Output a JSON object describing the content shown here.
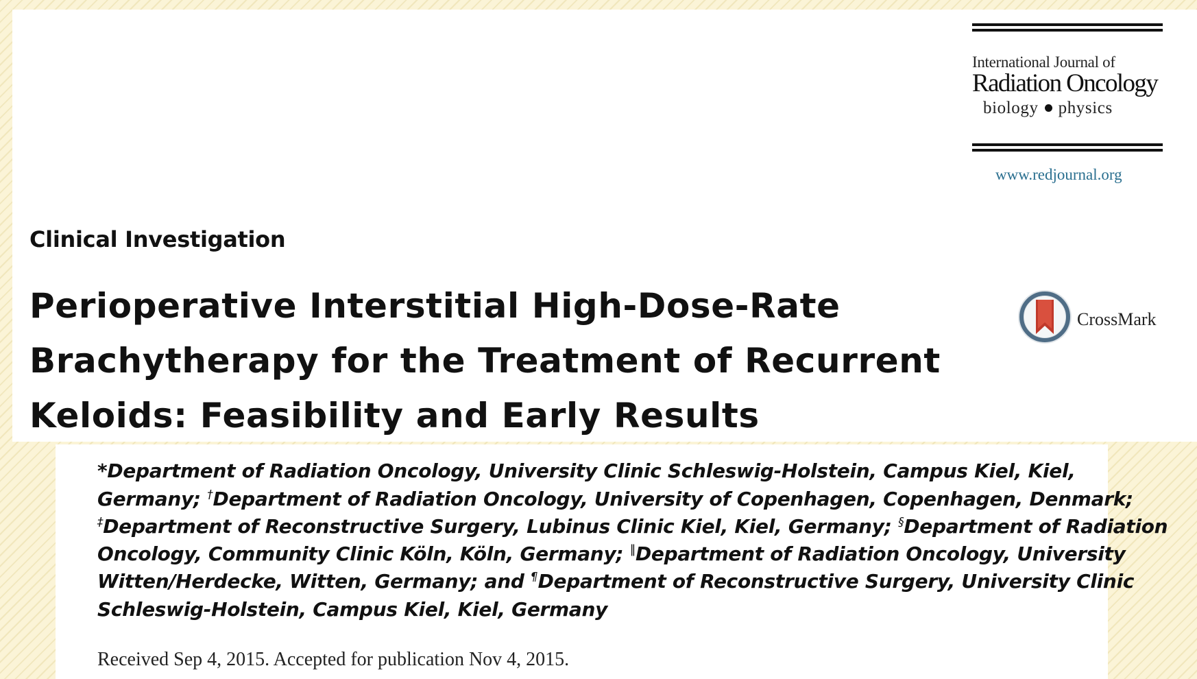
{
  "journal": {
    "name_line1": "International Journal of",
    "name_line2": "Radiation Oncology",
    "subtitle_left": "biology",
    "subtitle_right": "physics",
    "url": "www.redjournal.org"
  },
  "section": "Clinical Investigation",
  "title_lines": [
    "Perioperative Interstitial High-Dose-Rate",
    "Brachytherapy for the Treatment of Recurrent",
    "Keloids: Feasibility and Early Results"
  ],
  "crossmark_label": "CrossMark",
  "affiliations": {
    "line1": "*Department of Radiation Oncology, University Clinic Schleswig-Holstein, Campus Kiel, Kiel,",
    "line2_text": "Germany; ",
    "mark_dagger": "†",
    "line2_rest": "Department of Radiation Oncology, University of Copenhagen, Copenhagen, Denmark;",
    "mark_double_dagger": "‡",
    "line3_text": "Department of Reconstructive Surgery, Lubinus Clinic Kiel, Kiel, Germany; ",
    "mark_section": "§",
    "line3_rest": "Department of Radiation",
    "line4_text": "Oncology, Community Clinic Köln, Köln, Germany; ",
    "mark_parallel": "‖",
    "line4_rest": "Department of Radiation Oncology, University",
    "line5_text": "Witten/Herdecke, Witten, Germany; and ",
    "mark_pilcrow": "¶",
    "line5_rest": "Department of Reconstructive Surgery, University Clinic",
    "line6": "Schleswig-Holstein, Campus Kiel, Kiel, Germany"
  },
  "received_text": "Received Sep 4, 2015. Accepted for publication Nov 4, 2015.",
  "colors": {
    "background": "#fbf4d7",
    "link": "#2a6f8f",
    "crossmark_ring": "#4f6d86",
    "crossmark_ribbon": "#c0392b"
  }
}
